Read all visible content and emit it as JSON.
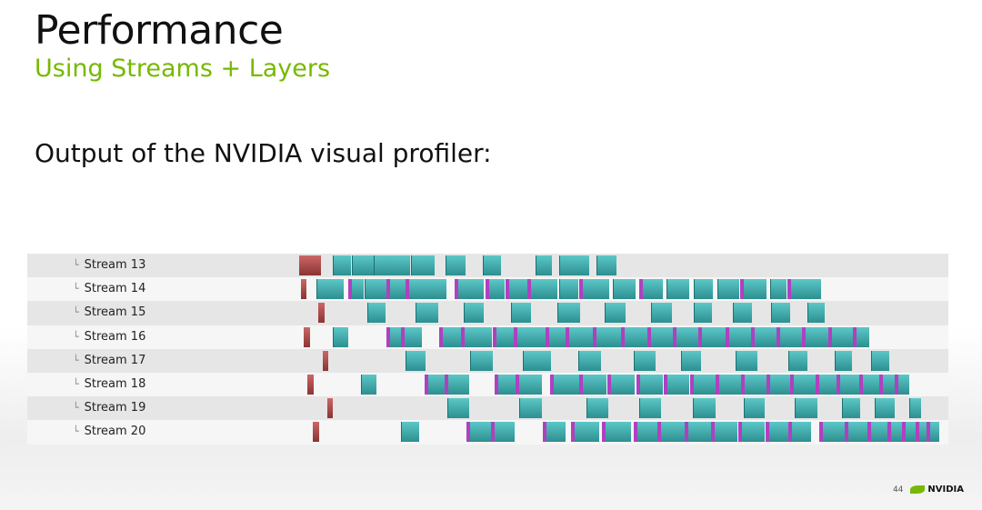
{
  "slide": {
    "title": "Performance",
    "subtitle": "Using Streams + Layers",
    "body": "Output of the NVIDIA visual profiler:",
    "page_number": "44",
    "logo_text": "NVIDIA"
  },
  "profiler": {
    "streams": [
      "Stream 13",
      "Stream 14",
      "Stream 15",
      "Stream 16",
      "Stream 17",
      "Stream 18",
      "Stream 19",
      "Stream 20"
    ]
  },
  "colors": {
    "accent": "#76b900",
    "kernel": "#3aa8a9",
    "memcpy": "#a84848",
    "marker": "#b040c0"
  }
}
